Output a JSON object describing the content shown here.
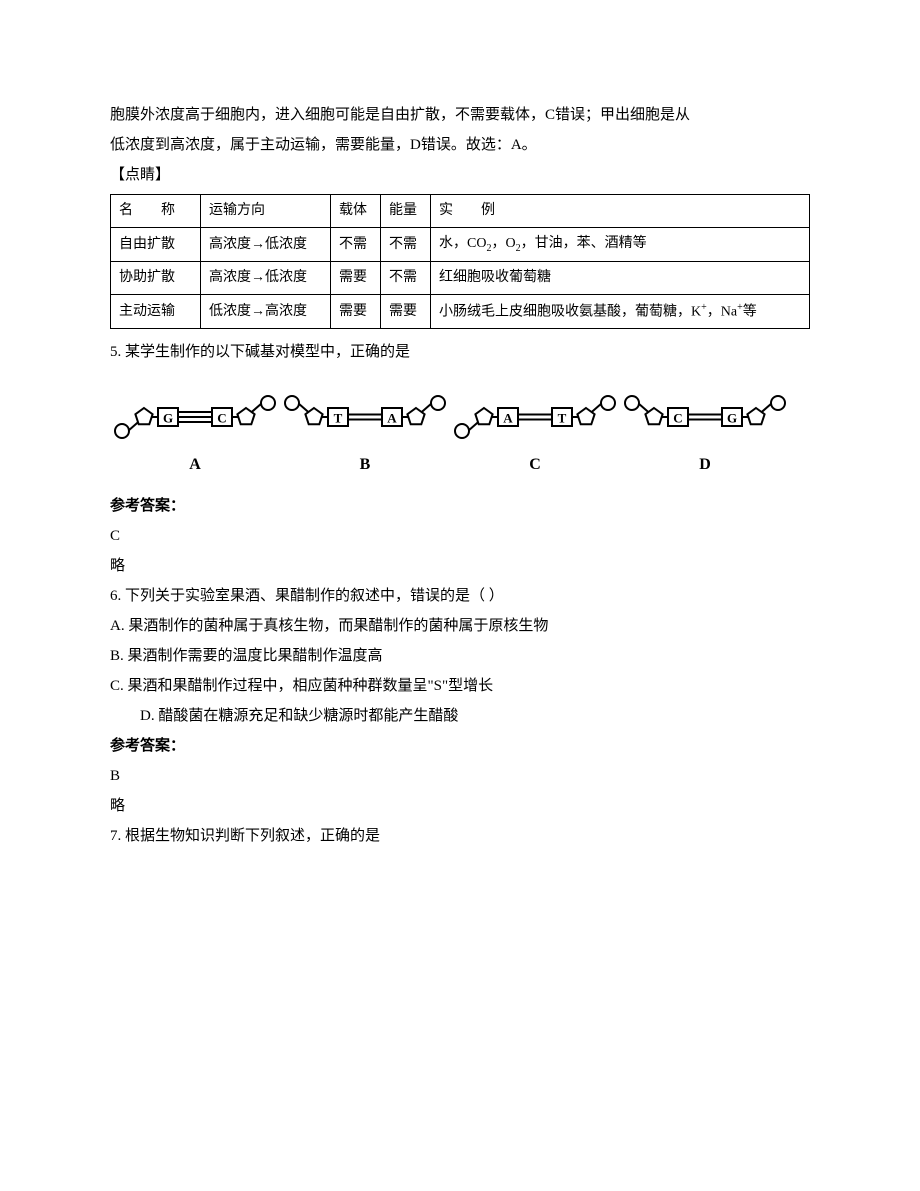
{
  "intro": {
    "line1": "胞膜外浓度高于细胞内，进入细胞可能是自由扩散，不需要载体，C错误；甲出细胞是从",
    "line2": "低浓度到高浓度，属于主动运输，需要能量，D错误。故选：A。",
    "line3": "【点睛】"
  },
  "table": {
    "cols": [
      "名　　称",
      "运输方向",
      "载体",
      "能量",
      "实　　例"
    ],
    "rows": [
      [
        "自由扩散",
        "高浓度→低浓度",
        "不需",
        "不需",
        {
          "raw": "水，CO₂，O₂，甘油，苯、酒精等"
        }
      ],
      [
        "协助扩散",
        "高浓度→低浓度",
        "需要",
        "不需",
        "红细胞吸收葡萄糖"
      ],
      [
        "主动运输",
        "低浓度→高浓度",
        "需要",
        "需要",
        {
          "raw": "小肠绒毛上皮细胞吸收氨基酸，葡萄糖，K⁺，Na⁺等"
        }
      ]
    ],
    "col_widths": [
      "90px",
      "130px",
      "50px",
      "50px",
      "auto"
    ]
  },
  "q5": {
    "stem": "5. 某学生制作的以下碱基对模型中，正确的是",
    "models": [
      {
        "name": "A",
        "left": "G",
        "right": "C",
        "bonds": 3,
        "dir": "anti"
      },
      {
        "name": "B",
        "left": "T",
        "right": "A",
        "bonds": 2,
        "dir": "para"
      },
      {
        "name": "C",
        "left": "A",
        "right": "T",
        "bonds": 2,
        "dir": "anti"
      },
      {
        "name": "D",
        "left": "C",
        "right": "G",
        "bonds": 2,
        "dir": "para"
      }
    ],
    "ref_label": "参考答案：",
    "answer": "C",
    "extra": "略"
  },
  "q6": {
    "stem": "6. 下列关于实验室果酒、果醋制作的叙述中，错误的是（ ）",
    "A": "A. 果酒制作的菌种属于真核生物，而果醋制作的菌种属于原核生物",
    "B": "B. 果酒制作需要的温度比果醋制作温度高",
    "C": "C. 果酒和果醋制作过程中，相应菌种种群数量呈\"S\"型增长",
    "D": "D. 醋酸菌在糖源充足和缺少糖源时都能产生醋酸",
    "ref_label": "参考答案：",
    "answer": "B",
    "extra": "略"
  },
  "q7": {
    "stem": "7. 根据生物知识判断下列叙述，正确的是"
  },
  "style": {
    "text_color": "#000000",
    "bg_color": "#ffffff",
    "font_family": "SimSun",
    "font_size_pt": 11,
    "line_height": 2.0,
    "table_border_color": "#000000",
    "svg_stroke": "#000000",
    "svg_fill": "#ffffff"
  }
}
